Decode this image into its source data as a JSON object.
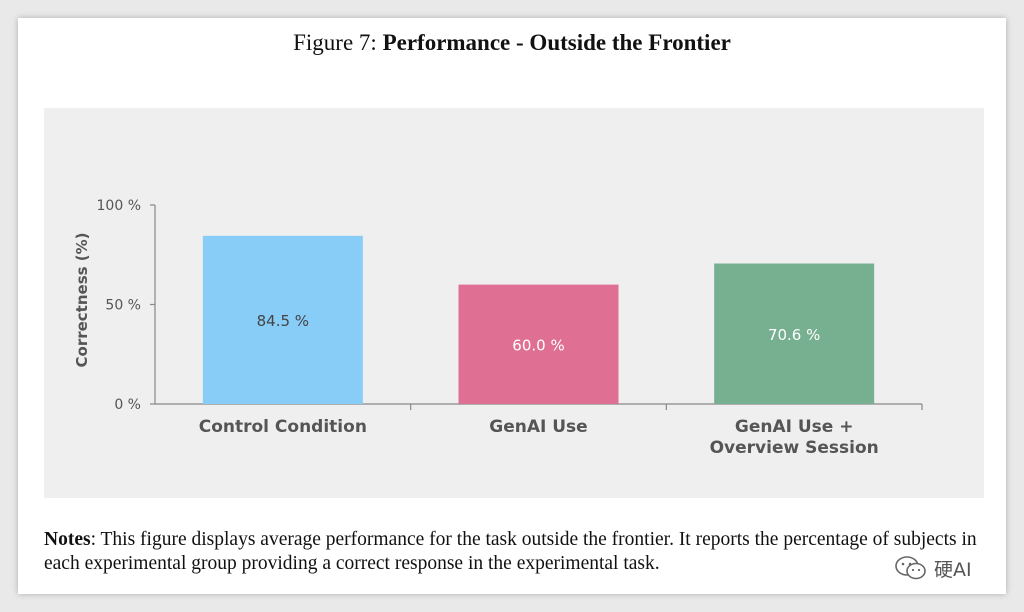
{
  "figure": {
    "label": "Figure 7:",
    "title": "Performance - Outside the Frontier"
  },
  "notes": {
    "label": "Notes",
    "text": ": This figure displays average performance for the task outside the frontier. It reports the percentage of subjects in each experimental group providing a correct response in the experimental task."
  },
  "watermark": {
    "icon": "wechat-icon",
    "text": "硬AI"
  },
  "chart_data": {
    "type": "bar",
    "ylabel": "Correctness (%)",
    "ylim": [
      0,
      100
    ],
    "yticks": [
      {
        "value": 0,
        "label": "0 %"
      },
      {
        "value": 50,
        "label": "50 %"
      },
      {
        "value": 100,
        "label": "100 %"
      }
    ],
    "categories": [
      [
        "Control Condition"
      ],
      [
        "GenAI Use"
      ],
      [
        "GenAI Use +",
        "Overview Session"
      ]
    ],
    "values": [
      84.5,
      60.0,
      70.6
    ],
    "value_labels": [
      "84.5 %",
      "60.0 %",
      "70.6 %"
    ],
    "colors": [
      "#87cdf7",
      "#df7093",
      "#76b090"
    ],
    "label_colors": [
      "#444444",
      "#ffffff",
      "#ffffff"
    ],
    "grid": false,
    "legend": "none"
  }
}
